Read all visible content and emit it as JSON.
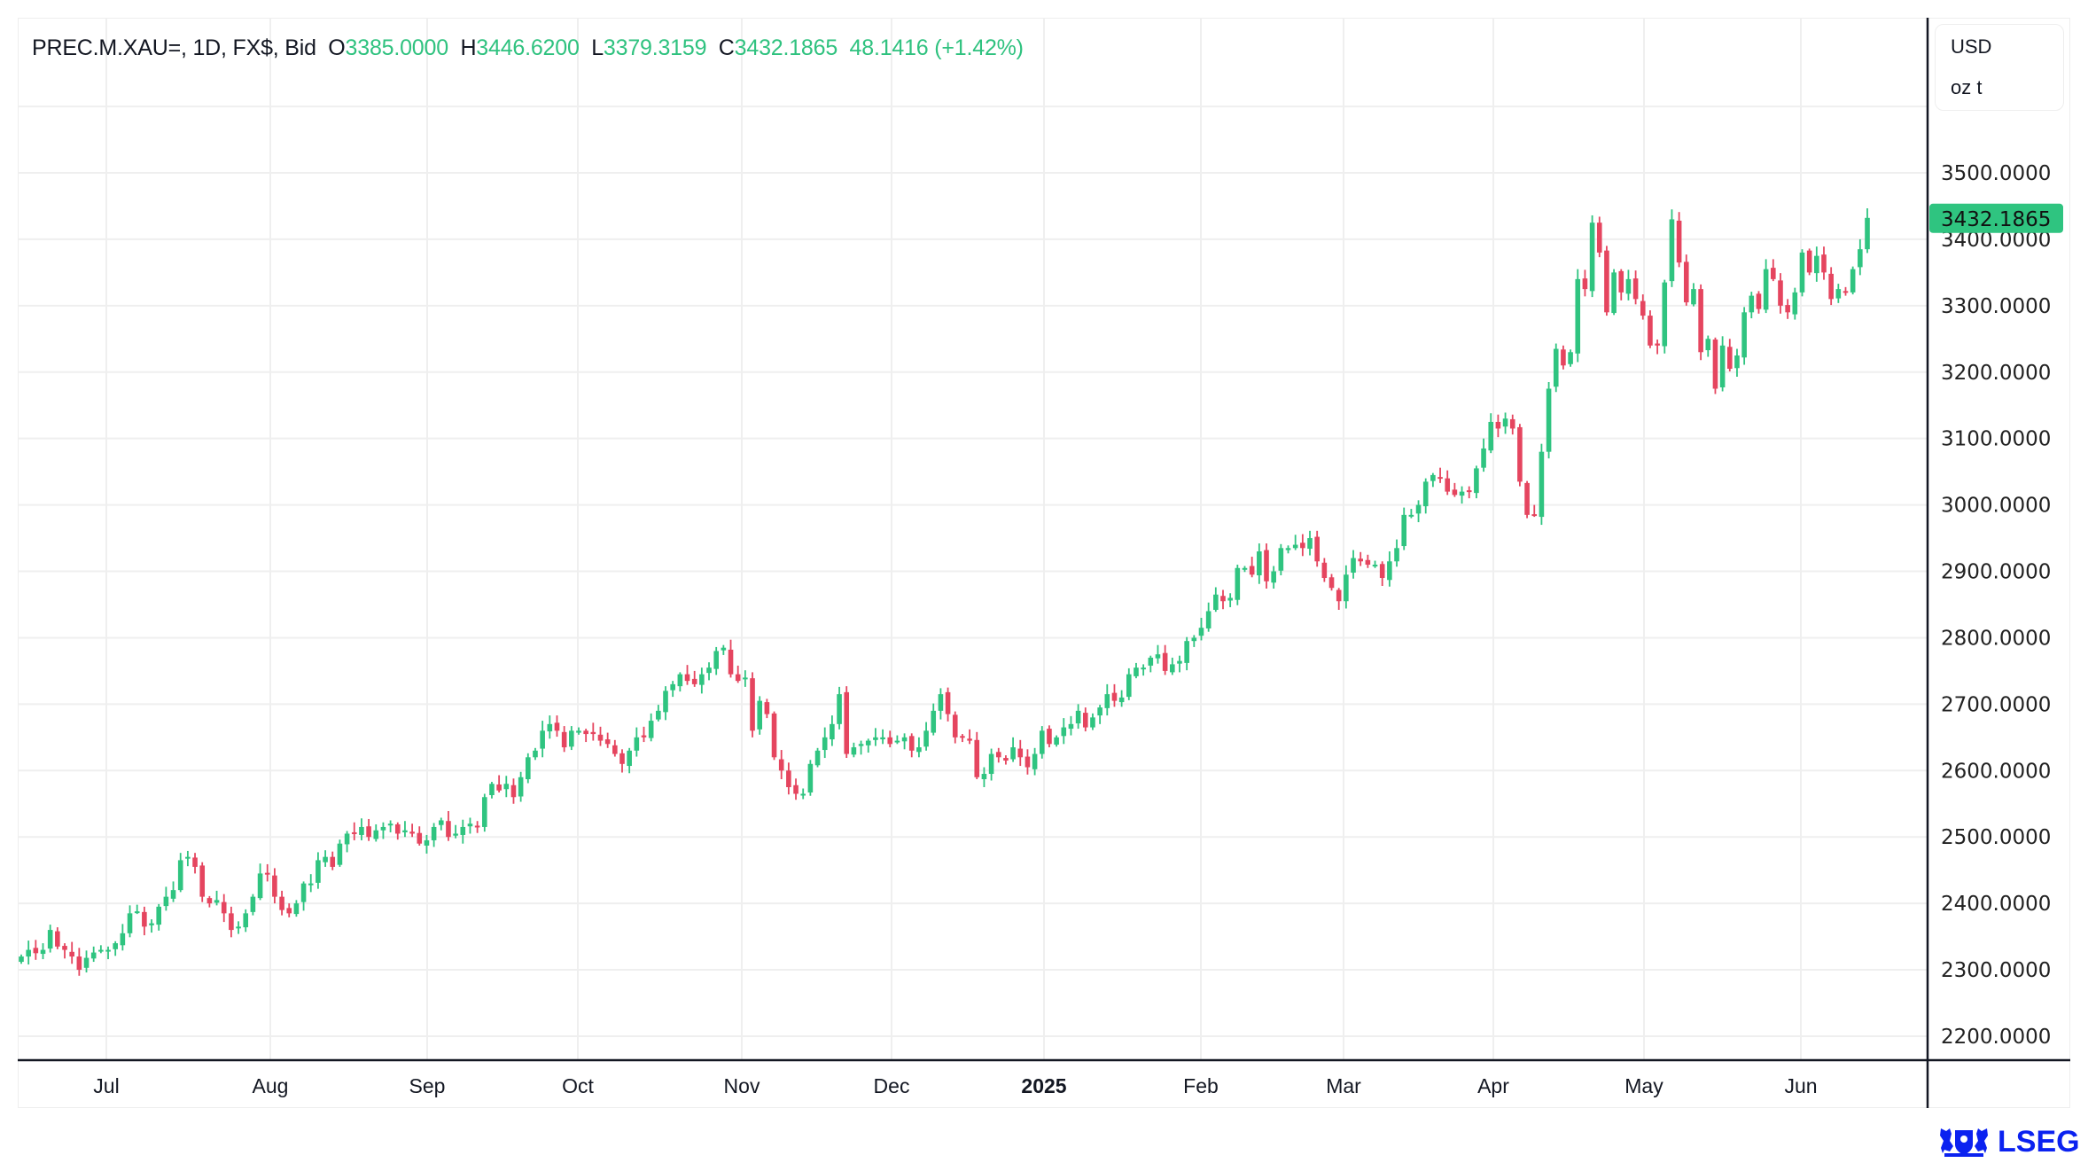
{
  "legend": {
    "symbol": "PREC.M.XAU=, 1D, FX$, Bid",
    "open_label": "O",
    "open": "3385.0000",
    "high_label": "H",
    "high": "3446.6200",
    "low_label": "L",
    "low": "3379.3159",
    "close_label": "C",
    "close": "3432.1865",
    "change": "48.1416 (+1.42%)"
  },
  "units": {
    "currency": "USD",
    "unit": "oz t"
  },
  "logo": {
    "text": "LSEG"
  },
  "colors": {
    "up": "#2fc480",
    "down": "#e5455f",
    "grid": "#efefef",
    "axis": "#131722"
  },
  "chart_data": {
    "type": "candlestick",
    "title": "PREC.M.XAU=, 1D, FX$, Bid",
    "ylabel": "USD / oz t",
    "ylim": [
      2150,
      3620
    ],
    "y_ticks": [
      "2200.0000",
      "2300.0000",
      "2400.0000",
      "2500.0000",
      "2600.0000",
      "2700.0000",
      "2800.0000",
      "2900.0000",
      "3000.0000",
      "3100.0000",
      "3200.0000",
      "3300.0000",
      "3400.0000",
      "3500.0000"
    ],
    "y_tick_values": [
      2200,
      2300,
      2400,
      2500,
      2600,
      2700,
      2800,
      2900,
      3000,
      3100,
      3200,
      3300,
      3400,
      3500
    ],
    "x_ticks": [
      "Jul",
      "Aug",
      "Sep",
      "Oct",
      "Nov",
      "Dec",
      "2025",
      "Feb",
      "Mar",
      "Apr",
      "May",
      "Jun"
    ],
    "last_price_label": "3432.1865",
    "last_candle": {
      "open": 3385.0,
      "high": 3446.62,
      "low": 3379.3159,
      "close": 3432.1865
    },
    "closes": [
      2320,
      2330,
      2325,
      2330,
      2360,
      2335,
      2330,
      2320,
      2300,
      2318,
      2326,
      2330,
      2330,
      2340,
      2355,
      2385,
      2388,
      2365,
      2370,
      2395,
      2410,
      2420,
      2465,
      2470,
      2455,
      2410,
      2400,
      2405,
      2385,
      2360,
      2365,
      2385,
      2410,
      2445,
      2445,
      2410,
      2390,
      2385,
      2400,
      2430,
      2430,
      2465,
      2470,
      2455,
      2490,
      2505,
      2505,
      2515,
      2500,
      2510,
      2515,
      2520,
      2505,
      2510,
      2505,
      2490,
      2495,
      2515,
      2525,
      2500,
      2505,
      2515,
      2520,
      2515,
      2560,
      2580,
      2570,
      2580,
      2560,
      2590,
      2620,
      2630,
      2660,
      2670,
      2660,
      2635,
      2660,
      2660,
      2655,
      2655,
      2645,
      2640,
      2625,
      2610,
      2630,
      2650,
      2650,
      2675,
      2690,
      2720,
      2730,
      2745,
      2735,
      2730,
      2745,
      2755,
      2780,
      2785,
      2745,
      2735,
      2740,
      2660,
      2705,
      2685,
      2620,
      2600,
      2575,
      2565,
      2565,
      2610,
      2630,
      2650,
      2670,
      2715,
      2625,
      2635,
      2640,
      2645,
      2650,
      2650,
      2640,
      2645,
      2650,
      2630,
      2635,
      2660,
      2690,
      2715,
      2685,
      2650,
      2650,
      2645,
      2590,
      2595,
      2625,
      2620,
      2615,
      2635,
      2620,
      2605,
      2625,
      2660,
      2640,
      2650,
      2665,
      2670,
      2690,
      2665,
      2680,
      2695,
      2715,
      2705,
      2710,
      2745,
      2755,
      2755,
      2770,
      2775,
      2750,
      2760,
      2765,
      2795,
      2800,
      2815,
      2840,
      2865,
      2855,
      2860,
      2905,
      2905,
      2895,
      2930,
      2885,
      2900,
      2935,
      2935,
      2940,
      2935,
      2950,
      2915,
      2890,
      2875,
      2855,
      2895,
      2920,
      2915,
      2910,
      2910,
      2890,
      2915,
      2935,
      2985,
      2985,
      3000,
      3035,
      3045,
      3040,
      3020,
      3015,
      3020,
      3020,
      3055,
      3085,
      3125,
      3115,
      3130,
      3115,
      3035,
      2985,
      2985,
      3080,
      3175,
      3235,
      3210,
      3230,
      3340,
      3325,
      3425,
      3380,
      3290,
      3350,
      3320,
      3340,
      3310,
      3285,
      3240,
      3240,
      3335,
      3430,
      3365,
      3305,
      3325,
      3230,
      3250,
      3175,
      3240,
      3205,
      3225,
      3290,
      3315,
      3295,
      3355,
      3340,
      3300,
      3290,
      3320,
      3380,
      3350,
      3375,
      3350,
      3310,
      3325,
      3320,
      3355,
      3385,
      3432.1865
    ]
  }
}
